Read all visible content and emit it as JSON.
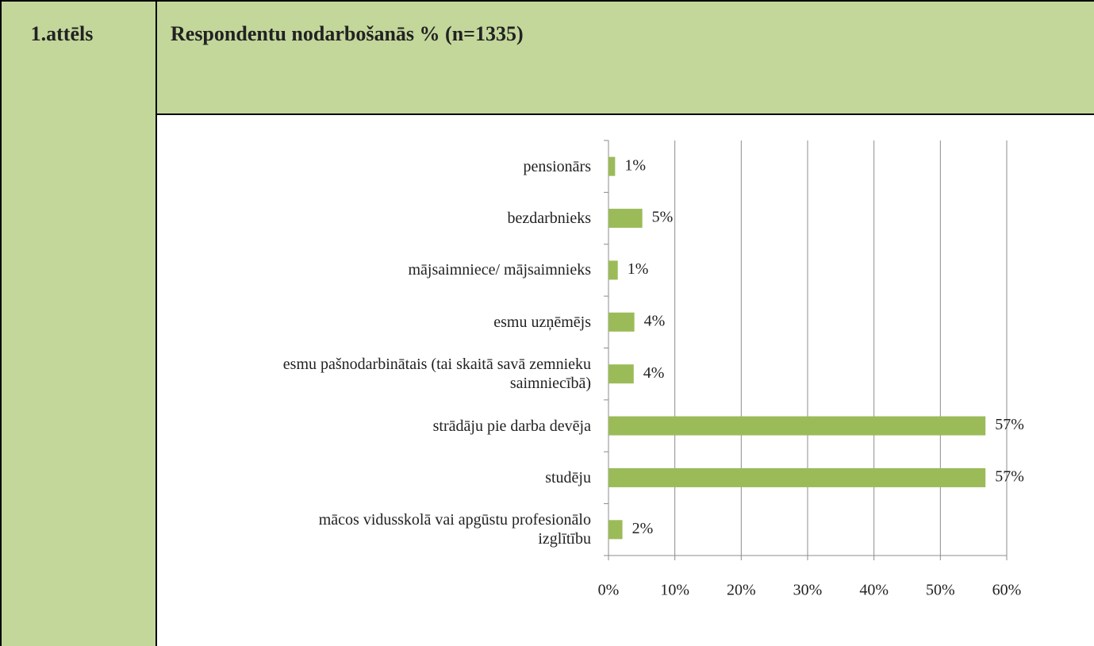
{
  "figure_label": "1.attēls",
  "chart_data": {
    "type": "bar",
    "orientation": "horizontal",
    "title": "Respondentu nodarbošanās % (n=1335)",
    "categories": [
      "pensionārs",
      "bezdarbnieks",
      "mājsaimniece/ mājsaimnieks",
      "esmu uzņēmējs",
      "esmu pašnodarbinātais (tai skaitā savā zemnieku saimniecībā)",
      "strādāju pie darba devēja",
      "studēju",
      "mācos vidusskolā vai apgūstu profesionālo izglītību"
    ],
    "values": [
      1,
      5.1,
      1.4,
      3.9,
      3.8,
      56.8,
      56.8,
      2.1
    ],
    "value_labels": [
      "1%",
      "5%",
      "1%",
      "4%",
      "4%",
      "57%",
      "57%",
      "2%"
    ],
    "color": "#9bbb59",
    "xlim": [
      0,
      60
    ],
    "xticks": [
      {
        "value": 0,
        "label": "0%"
      },
      {
        "value": 10,
        "label": "10%"
      },
      {
        "value": 20,
        "label": "20%"
      },
      {
        "value": 30,
        "label": "30%"
      },
      {
        "value": 40,
        "label": "40%"
      },
      {
        "value": 50,
        "label": "50%"
      },
      {
        "value": 60,
        "label": "60%"
      }
    ],
    "grid": true
  }
}
